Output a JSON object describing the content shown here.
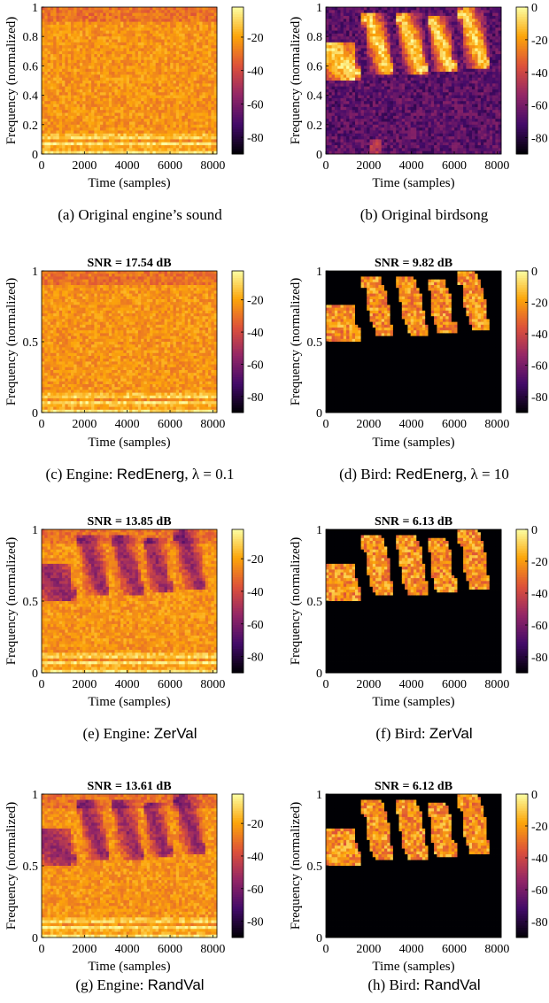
{
  "chart_data": [
    {
      "id": "a",
      "type": "heatmap",
      "signal": "engine",
      "variant": "original",
      "title": "",
      "caption": "(a)",
      "caption_text": "Original engine’s sound",
      "xlabel": "Time (samples)",
      "ylabel": "Frequency (normalized)",
      "xlim": [
        0,
        8192
      ],
      "ylim": [
        0,
        1
      ],
      "xticks": [
        0,
        2000,
        4000,
        6000,
        8000
      ],
      "xtick_labels": [
        "0",
        "2000",
        "4000",
        "6000",
        "8000"
      ],
      "yticks": [
        0,
        0.2,
        0.4,
        0.6,
        0.8,
        1
      ],
      "ytick_labels": [
        "0",
        "0.2",
        "0.4",
        "0.6",
        "0.8",
        "1"
      ],
      "colorbar": {
        "ticks": [
          -20,
          -40,
          -60,
          -80
        ],
        "labels": [
          "-20",
          "-40",
          "-60",
          "-80"
        ],
        "range": [
          -90,
          -2
        ]
      }
    },
    {
      "id": "b",
      "type": "heatmap",
      "signal": "bird",
      "variant": "original",
      "title": "",
      "caption": "(b)",
      "caption_text": "Original birdsong",
      "xlabel": "Time (samples)",
      "ylabel": "Frequency (normalized)",
      "xlim": [
        0,
        8192
      ],
      "ylim": [
        0,
        1
      ],
      "xticks": [
        0,
        2000,
        4000,
        6000,
        8000
      ],
      "xtick_labels": [
        "0",
        "2000",
        "4000",
        "6000",
        "8000"
      ],
      "yticks": [
        0,
        0.2,
        0.4,
        0.6,
        0.8,
        1
      ],
      "ytick_labels": [
        "0",
        "0.2",
        "0.4",
        "0.6",
        "0.8",
        "1"
      ],
      "colorbar": {
        "ticks": [
          0,
          -20,
          -40,
          -60,
          -80
        ],
        "labels": [
          "0",
          "-20",
          "-40",
          "-60",
          "-80"
        ],
        "range": [
          -90,
          0
        ]
      }
    },
    {
      "id": "c",
      "type": "heatmap",
      "signal": "engine",
      "variant": "RedEnerg",
      "title": "SNR = 17.54 dB",
      "caption": "(c)",
      "caption_text": "Engine:",
      "method": "RedEnerg",
      "param": ", λ = 0.1",
      "xlabel": "Time (samples)",
      "ylabel": "Frequency (normalized)",
      "xlim": [
        0,
        8192
      ],
      "ylim": [
        0,
        1
      ],
      "xticks": [
        0,
        2000,
        4000,
        6000,
        8000
      ],
      "xtick_labels": [
        "0",
        "2000",
        "4000",
        "6000",
        "8000"
      ],
      "yticks": [
        0,
        0.5,
        1
      ],
      "ytick_labels": [
        "0",
        "0.5",
        "1"
      ],
      "colorbar": {
        "ticks": [
          -20,
          -40,
          -60,
          -80
        ],
        "labels": [
          "-20",
          "-40",
          "-60",
          "-80"
        ],
        "range": [
          -90,
          -2
        ]
      }
    },
    {
      "id": "d",
      "type": "heatmap",
      "signal": "bird",
      "variant": "RedEnerg",
      "title": "SNR = 9.82 dB",
      "caption": "(d)",
      "caption_text": "Bird:",
      "method": "RedEnerg",
      "param": ", λ = 10",
      "xlabel": "Time (samples)",
      "ylabel": "Frequency (normalized)",
      "xlim": [
        0,
        8192
      ],
      "ylim": [
        0,
        1
      ],
      "xticks": [
        0,
        2000,
        4000,
        6000,
        8000
      ],
      "xtick_labels": [
        "0",
        "2000",
        "4000",
        "6000",
        "8000"
      ],
      "yticks": [
        0,
        0.5,
        1
      ],
      "ytick_labels": [
        "0",
        "0.5",
        "1"
      ],
      "colorbar": {
        "ticks": [
          0,
          -20,
          -40,
          -60,
          -80
        ],
        "labels": [
          "0",
          "-20",
          "-40",
          "-60",
          "-80"
        ],
        "range": [
          -90,
          0
        ]
      }
    },
    {
      "id": "e",
      "type": "heatmap",
      "signal": "engine",
      "variant": "ZerVal",
      "title": "SNR = 13.85 dB",
      "caption": "(e)",
      "caption_text": "Engine:",
      "method": "ZerVal",
      "param": "",
      "xlabel": "Time (samples)",
      "ylabel": "Frequency (normalized)",
      "xlim": [
        0,
        8192
      ],
      "ylim": [
        0,
        1
      ],
      "xticks": [
        0,
        2000,
        4000,
        6000,
        8000
      ],
      "xtick_labels": [
        "0",
        "2000",
        "4000",
        "6000",
        "8000"
      ],
      "yticks": [
        0,
        0.5,
        1
      ],
      "ytick_labels": [
        "0",
        "0.5",
        "1"
      ],
      "colorbar": {
        "ticks": [
          -20,
          -40,
          -60,
          -80
        ],
        "labels": [
          "-20",
          "-40",
          "-60",
          "-80"
        ],
        "range": [
          -90,
          -2
        ]
      }
    },
    {
      "id": "f",
      "type": "heatmap",
      "signal": "bird",
      "variant": "ZerVal",
      "title": "SNR = 6.13 dB",
      "caption": "(f)",
      "caption_text": "Bird:",
      "method": "ZerVal",
      "param": "",
      "xlabel": "Time (samples)",
      "ylabel": "Frequency (normalized)",
      "xlim": [
        0,
        8192
      ],
      "ylim": [
        0,
        1
      ],
      "xticks": [
        0,
        2000,
        4000,
        6000,
        8000
      ],
      "xtick_labels": [
        "0",
        "2000",
        "4000",
        "6000",
        "8000"
      ],
      "yticks": [
        0,
        0.5,
        1
      ],
      "ytick_labels": [
        "0",
        "0.5",
        "1"
      ],
      "colorbar": {
        "ticks": [
          0,
          -20,
          -40,
          -60,
          -80
        ],
        "labels": [
          "0",
          "-20",
          "-40",
          "-60",
          "-80"
        ],
        "range": [
          -90,
          0
        ]
      }
    },
    {
      "id": "g",
      "type": "heatmap",
      "signal": "engine",
      "variant": "RandVal",
      "title": "SNR = 13.61 dB",
      "caption": "(g)",
      "caption_text": "Engine:",
      "method": "RandVal",
      "param": "",
      "xlabel": "Time (samples)",
      "ylabel": "Frequency (normalized)",
      "xlim": [
        0,
        8192
      ],
      "ylim": [
        0,
        1
      ],
      "xticks": [
        0,
        2000,
        4000,
        6000,
        8000
      ],
      "xtick_labels": [
        "0",
        "2000",
        "4000",
        "6000",
        "8000"
      ],
      "yticks": [
        0,
        0.5,
        1
      ],
      "ytick_labels": [
        "0",
        "0.5",
        "1"
      ],
      "colorbar": {
        "ticks": [
          -20,
          -40,
          -60,
          -80
        ],
        "labels": [
          "-20",
          "-40",
          "-60",
          "-80"
        ],
        "range": [
          -90,
          -2
        ]
      }
    },
    {
      "id": "h",
      "type": "heatmap",
      "signal": "bird",
      "variant": "RandVal",
      "title": "SNR = 6.12 dB",
      "caption": "(h)",
      "caption_text": "Bird:",
      "method": "RandVal",
      "param": "",
      "xlabel": "Time (samples)",
      "ylabel": "Frequency (normalized)",
      "xlim": [
        0,
        8192
      ],
      "ylim": [
        0,
        1
      ],
      "xticks": [
        0,
        2000,
        4000,
        6000,
        8000
      ],
      "xtick_labels": [
        "0",
        "2000",
        "4000",
        "6000",
        "8000"
      ],
      "yticks": [
        0,
        0.5,
        1
      ],
      "ytick_labels": [
        "0",
        "0.5",
        "1"
      ],
      "colorbar": {
        "ticks": [
          0,
          -20,
          -40,
          -60,
          -80
        ],
        "labels": [
          "0",
          "-20",
          "-40",
          "-60",
          "-80"
        ],
        "range": [
          -90,
          0
        ]
      }
    }
  ],
  "colors": {
    "colormap": [
      "#000004",
      "#420a68",
      "#932667",
      "#dd513a",
      "#fca50a",
      "#fcffa4"
    ]
  }
}
